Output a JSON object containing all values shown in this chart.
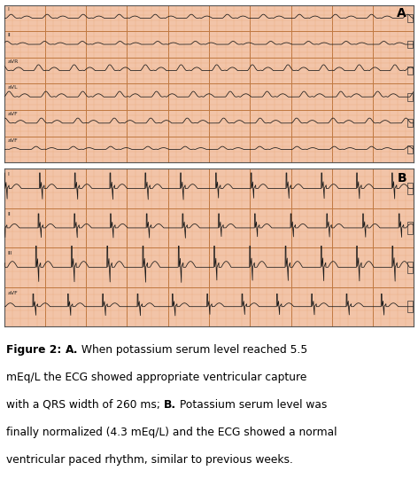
{
  "fig_width": 4.72,
  "fig_height": 5.66,
  "dpi": 100,
  "ecg_bg_color": "#f2c4a8",
  "ecg_grid_minor_color": "#e8a87c",
  "ecg_grid_major_color": "#c07840",
  "ecg_line_color": "#1a1a1a",
  "panel_A_label": "A",
  "panel_B_label": "B",
  "caption_fontsize": 8.8,
  "panel_label_fontsize": 10,
  "white_bg": "#ffffff",
  "border_color": "#555555",
  "panel_A_n_leads": 6,
  "panel_B_n_leads": 4,
  "caption_line1_bold": "Figure 2: A.",
  "caption_line1_normal": " When potassium serum level reached 5.5",
  "caption_line2": "mEq/L the ECG showed appropriate ventricular capture",
  "caption_line3_normal": "with a QRS width of 260 ms; ",
  "caption_line3_bold": "B.",
  "caption_line3_end": " Potassium serum level was",
  "caption_line4": "finally normalized (4.3 mEq/L) and the ECG showed a normal",
  "caption_line5": "ventricular paced rhythm, similar to previous weeks."
}
